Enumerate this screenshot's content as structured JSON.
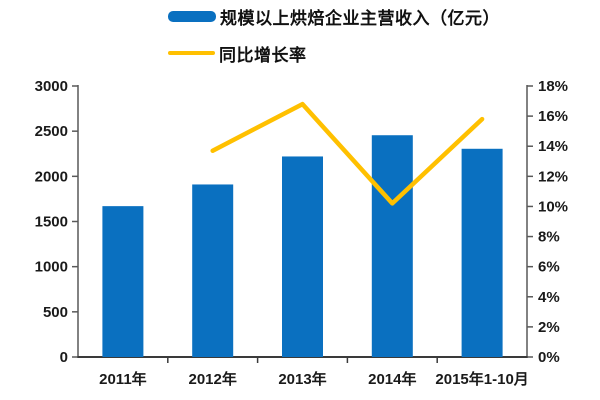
{
  "chart_data": {
    "type": "bar",
    "subtype": "bar-line-combo",
    "categories": [
      "2011年",
      "2012年",
      "2013年",
      "2014年",
      "2015年1-10月"
    ],
    "series": [
      {
        "name": "规模以上烘焙企业主营收入（亿元）",
        "type": "bar",
        "axis": "left",
        "color": "#0a70c0",
        "values": [
          1670,
          1910,
          2220,
          2455,
          2305
        ]
      },
      {
        "name": "同比增长率",
        "type": "line",
        "axis": "right",
        "color": "#ffc000",
        "values": [
          null,
          13.7,
          16.8,
          10.2,
          15.8
        ]
      }
    ],
    "left_axis": {
      "min": 0,
      "max": 3000,
      "step": 500,
      "tick_labels": [
        "0",
        "500",
        "1000",
        "1500",
        "2000",
        "2500",
        "3000"
      ]
    },
    "right_axis": {
      "min": 0,
      "max": 18,
      "step": 2,
      "tick_labels": [
        "0%",
        "2%",
        "4%",
        "6%",
        "8%",
        "10%",
        "12%",
        "14%",
        "16%",
        "18%"
      ]
    },
    "title": "",
    "xlabel": "",
    "ylabel": "",
    "grid": false,
    "legend_position": "top-center",
    "axis_color": "#595959",
    "baseline_color": "#3a3a3a",
    "label_color": "#1a1a1a",
    "background": "#ffffff"
  }
}
